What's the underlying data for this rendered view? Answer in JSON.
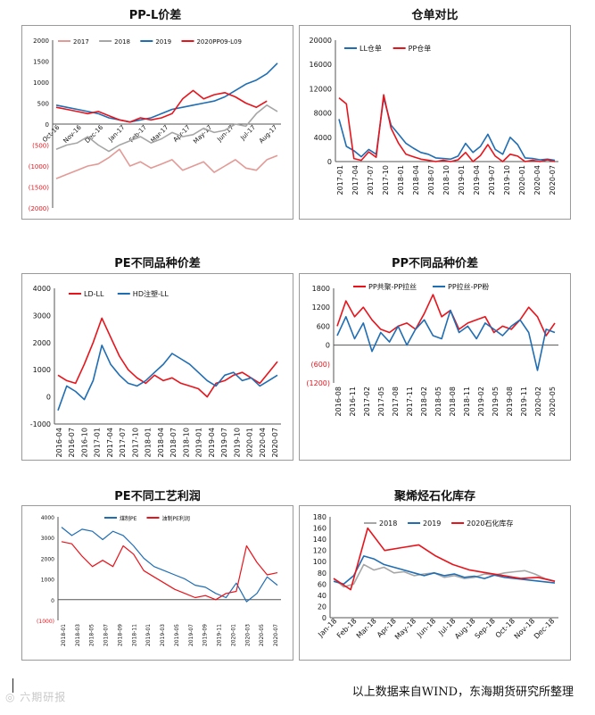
{
  "footer": {
    "source": "以上数据来自WIND，东海期货研究所整理",
    "watermark": "◎ 六期研报"
  },
  "chart_data": [
    {
      "type": "line",
      "title": "PP-L价差",
      "x_labels": [
        "Oct-16",
        "Nov-16",
        "Dec-16",
        "Jan-17",
        "Feb-17",
        "Mar-17",
        "Apr-17",
        "May-17",
        "Jun-17",
        "Jul-17",
        "Aug-17"
      ],
      "yticks": [
        -2000,
        -1500,
        -1000,
        -500,
        0,
        500,
        1000,
        1500,
        2000
      ],
      "ytick_labels": [
        "(2000)",
        "(1500)",
        "(1000)",
        "(500)",
        "0",
        "500",
        "1000",
        "1500",
        "2000"
      ],
      "ylim": [
        -2000,
        2000
      ],
      "series": [
        {
          "name": "2017",
          "color": "#e39a96",
          "values": [
            -1300,
            -1200,
            -1100,
            -1000,
            -950,
            -800,
            -600,
            -1000,
            -900,
            -1050,
            -950,
            -850,
            -1100,
            -1000,
            -900,
            -1150,
            -1000,
            -850,
            -1050,
            -1100,
            -850,
            -750
          ]
        },
        {
          "name": "2018",
          "color": "#a6a6a6",
          "values": [
            -600,
            -500,
            -450,
            -300,
            -500,
            -650,
            -500,
            -400,
            -300,
            -450,
            -350,
            -200,
            -300,
            -250,
            -100,
            -200,
            -150,
            0,
            -50,
            250,
            450,
            300
          ]
        },
        {
          "name": "2019",
          "color": "#1f6db3",
          "values": [
            450,
            400,
            350,
            300,
            250,
            150,
            100,
            50,
            100,
            150,
            250,
            350,
            400,
            450,
            500,
            550,
            650,
            800,
            950,
            1050,
            1200,
            1450
          ]
        },
        {
          "name": "2020PP09-L09",
          "color": "#e8141c",
          "values": [
            400,
            350,
            300,
            250,
            300,
            200,
            100,
            50,
            150,
            100,
            150,
            250,
            600,
            800,
            600,
            700,
            750,
            650,
            500,
            400,
            550,
            null
          ]
        }
      ]
    },
    {
      "type": "line",
      "title": "仓单对比",
      "x_labels": [
        "2017-01",
        "2017-04",
        "2017-07",
        "2017-10",
        "2018-01",
        "2018-04",
        "2018-07",
        "2018-10",
        "2019-01",
        "2019-04",
        "2019-07",
        "2019-10",
        "2020-01",
        "2020-04",
        "2020-07"
      ],
      "yticks": [
        0,
        4000,
        8000,
        12000,
        16000,
        20000
      ],
      "ytick_labels": [
        "0",
        "4000",
        "8000",
        "12000",
        "16000",
        "20000"
      ],
      "ylim": [
        0,
        20000
      ],
      "series": [
        {
          "name": "LL仓单",
          "color": "#1f6db3",
          "values": [
            7000,
            2500,
            1800,
            800,
            2000,
            1200,
            10500,
            6000,
            4500,
            3000,
            2200,
            1500,
            1200,
            600,
            500,
            400,
            900,
            3000,
            1500,
            2500,
            4500,
            2000,
            1200,
            4000,
            2800,
            600,
            500,
            300,
            400,
            200
          ]
        },
        {
          "name": "PP仓单",
          "color": "#e8141c",
          "values": [
            10500,
            9500,
            500,
            200,
            1600,
            700,
            11000,
            5500,
            3000,
            1200,
            800,
            400,
            200,
            0,
            200,
            0,
            300,
            1500,
            0,
            1000,
            2800,
            900,
            0,
            1200,
            900,
            0,
            200,
            0,
            300,
            0
          ]
        }
      ]
    },
    {
      "type": "line",
      "title": "PE不同品种价差",
      "x_labels": [
        "2016-04",
        "2016-07",
        "2016-10",
        "2017-01",
        "2017-04",
        "2017-07",
        "2017-10",
        "2018-01",
        "2018-04",
        "2018-07",
        "2018-10",
        "2019-01",
        "2019-04",
        "2019-07",
        "2019-10",
        "2020-01",
        "2020-04",
        "2020-07"
      ],
      "yticks": [
        -1000,
        0,
        1000,
        2000,
        3000,
        4000
      ],
      "ytick_labels": [
        "-1000",
        "0",
        "1000",
        "2000",
        "3000",
        "4000"
      ],
      "ylim": [
        -1000,
        4000
      ],
      "series": [
        {
          "name": "LD-LL",
          "color": "#e8141c",
          "values": [
            800,
            600,
            500,
            1200,
            2000,
            2900,
            2200,
            1500,
            1000,
            700,
            500,
            800,
            600,
            700,
            500,
            400,
            300,
            0,
            500,
            600,
            800,
            900,
            700,
            500,
            900,
            1300
          ]
        },
        {
          "name": "HD注塑-LL",
          "color": "#1f6db3",
          "values": [
            -500,
            400,
            200,
            -100,
            600,
            1900,
            1200,
            800,
            500,
            400,
            600,
            900,
            1200,
            1600,
            1400,
            1200,
            900,
            600,
            400,
            800,
            900,
            600,
            700,
            400,
            600,
            800
          ]
        }
      ]
    },
    {
      "type": "line",
      "title": "PP不同品种价差",
      "x_labels": [
        "2016-08",
        "2016-11",
        "2017-02",
        "2017-05",
        "2017-08",
        "2017-11",
        "2018-02",
        "2018-05",
        "2018-08",
        "2018-11",
        "2019-02",
        "2019-05",
        "2019-08",
        "2019-11",
        "2020-02",
        "2020-05"
      ],
      "yticks": [
        -1200,
        -600,
        0,
        600,
        1200,
        1800
      ],
      "ytick_labels": [
        "(1200)",
        "(600)",
        "0",
        "600",
        "1200",
        "1800"
      ],
      "ylim": [
        -1200,
        1800
      ],
      "series": [
        {
          "name": "PP共聚-PP拉丝",
          "color": "#e8141c",
          "values": [
            600,
            1400,
            900,
            1200,
            800,
            500,
            400,
            600,
            700,
            500,
            1000,
            1600,
            900,
            1100,
            500,
            700,
            800,
            900,
            400,
            600,
            500,
            800,
            1200,
            900,
            300,
            700
          ]
        },
        {
          "name": "PP拉丝-PP粉",
          "color": "#1f6db3",
          "values": [
            300,
            900,
            200,
            700,
            -200,
            400,
            100,
            600,
            0,
            500,
            800,
            300,
            200,
            1100,
            400,
            600,
            200,
            700,
            500,
            300,
            600,
            800,
            400,
            -800,
            500,
            400
          ]
        }
      ]
    },
    {
      "type": "line",
      "title": "PE不同工艺利润",
      "x_labels": [
        "2018-01",
        "2018-03",
        "2018-05",
        "2018-07",
        "2018-09",
        "2018-11",
        "2019-01",
        "2019-03",
        "2019-05",
        "2019-07",
        "2019-09",
        "2019-11",
        "2020-01",
        "2020-03",
        "2020-05",
        "2020-07"
      ],
      "yticks": [
        -1000,
        0,
        1000,
        2000,
        3000,
        4000
      ],
      "ytick_labels": [
        "(1000)",
        "0",
        "1000",
        "2000",
        "3000",
        "4000"
      ],
      "ylim": [
        -1000,
        4000
      ],
      "series": [
        {
          "name": "煤制PE",
          "color": "#1f6db3",
          "values": [
            3500,
            3100,
            3400,
            3300,
            2900,
            3300,
            3100,
            2600,
            2000,
            1600,
            1400,
            1200,
            1000,
            700,
            600,
            300,
            100,
            800,
            -100,
            300,
            1100,
            700
          ]
        },
        {
          "name": "油制PE利润",
          "color": "#e8141c",
          "values": [
            2800,
            2700,
            2100,
            1600,
            1900,
            1600,
            2600,
            2200,
            1400,
            1100,
            800,
            500,
            300,
            100,
            200,
            0,
            300,
            400,
            2600,
            1800,
            1200,
            1300
          ]
        }
      ]
    },
    {
      "type": "line",
      "title": "聚烯烃石化库存",
      "x_labels": [
        "Jan-18",
        "Feb-18",
        "Mar-18",
        "Apr-18",
        "May-18",
        "Jun-18",
        "Jul-18",
        "Aug-18",
        "Sep-18",
        "Oct-18",
        "Nov-18",
        "Dec-18"
      ],
      "yticks": [
        0,
        20,
        40,
        60,
        80,
        100,
        120,
        140,
        160,
        180
      ],
      "ytick_labels": [
        "0",
        "20",
        "40",
        "60",
        "80",
        "100",
        "120",
        "140",
        "160",
        "180"
      ],
      "ylim": [
        0,
        180
      ],
      "series": [
        {
          "name": "2018",
          "color": "#a6a6a6",
          "values": [
            70,
            55,
            60,
            95,
            85,
            90,
            80,
            82,
            75,
            78,
            80,
            72,
            75,
            70,
            72,
            78,
            76,
            80,
            82,
            84,
            78,
            70,
            65
          ]
        },
        {
          "name": "2019",
          "color": "#1f6db3",
          "values": [
            65,
            60,
            75,
            110,
            105,
            95,
            90,
            85,
            80,
            75,
            80,
            75,
            78,
            72,
            74,
            70,
            76,
            72,
            70,
            68,
            66,
            64,
            62
          ]
        },
        {
          "name": "2020石化库存",
          "color": "#e8141c",
          "values": [
            70,
            50,
            160,
            120,
            125,
            130,
            110,
            95,
            85,
            80,
            75,
            70,
            72,
            65
          ]
        }
      ]
    }
  ]
}
